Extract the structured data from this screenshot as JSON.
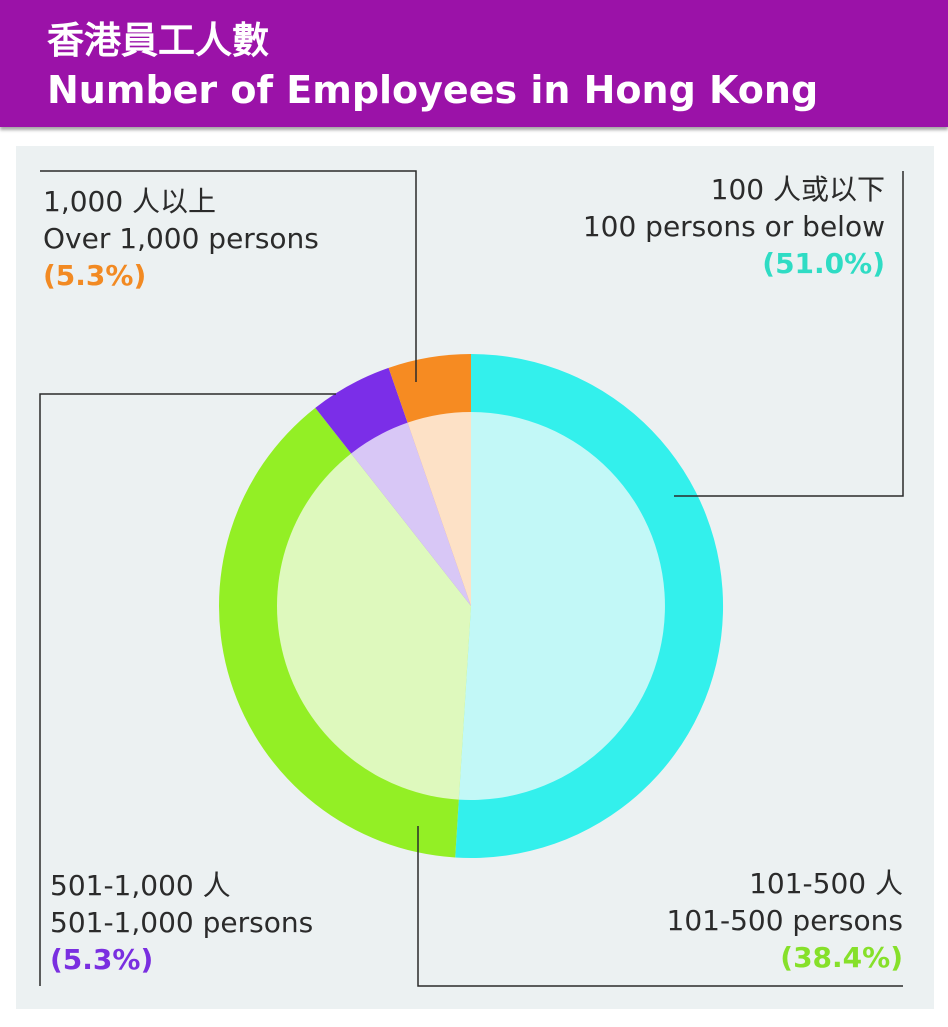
{
  "header": {
    "title_zh": "香港員工人數",
    "title_en": "Number of Employees in Hong Kong"
  },
  "chart_data": {
    "type": "pie",
    "title": "香港員工人數 Number of Employees in Hong Kong",
    "slices": [
      {
        "label_zh": "100 人或以下",
        "label_en": "100 persons or below",
        "value": 51.0,
        "percent_label": "(51.0%)",
        "color": "#33f0ec",
        "inner_color": "#c2f8f7",
        "label_color": "#2fdcc4"
      },
      {
        "label_zh": "101-500 人",
        "label_en": "101-500 persons",
        "value": 38.4,
        "percent_label": "(38.4%)",
        "color": "#93ef25",
        "inner_color": "#def9bd",
        "label_color": "#86e02a"
      },
      {
        "label_zh": "501-1,000 人",
        "label_en": "501-1,000 persons",
        "value": 5.3,
        "percent_label": "(5.3%)",
        "color": "#7b2ee8",
        "inner_color": "#d8c7f6",
        "label_color": "#7a2fe0"
      },
      {
        "label_zh": "1,000 人以上",
        "label_en": "Over 1,000 persons",
        "value": 5.3,
        "percent_label": "(5.3%)",
        "color": "#f68b22",
        "inner_color": "#fde1c6",
        "label_color": "#f28a23"
      }
    ]
  }
}
